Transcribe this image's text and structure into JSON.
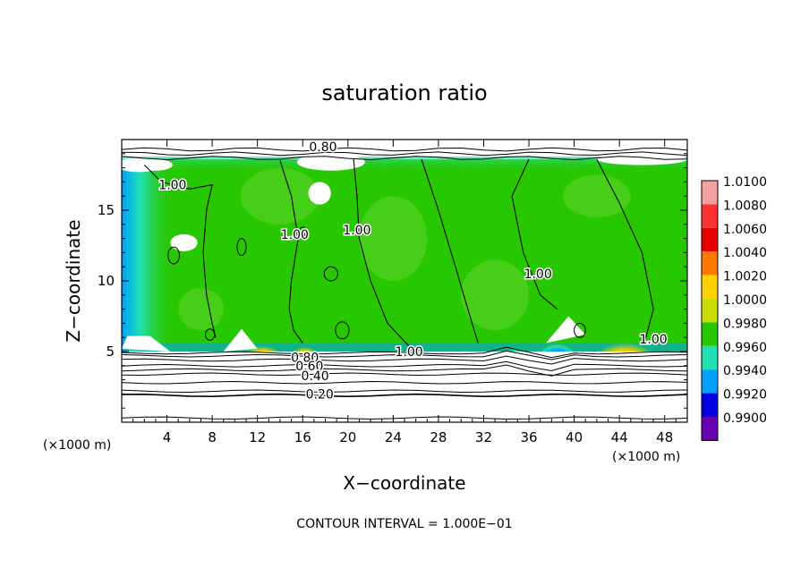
{
  "chart_data": {
    "type": "heatmap",
    "title": "saturation ratio",
    "xlabel": "X−coordinate",
    "ylabel": "Z−coordinate",
    "x_unit_label": "(×1000 m)",
    "xlim": [
      0,
      50
    ],
    "ylim": [
      0,
      20
    ],
    "x_ticks": [
      4,
      8,
      12,
      16,
      20,
      24,
      28,
      32,
      36,
      40,
      44,
      48
    ],
    "y_ticks": [
      5,
      10,
      15
    ],
    "footer": "CONTOUR INTERVAL = 1.000E−01",
    "colorbar": {
      "levels": [
        "1.0100",
        "1.0080",
        "1.0060",
        "1.0040",
        "1.0020",
        "1.0000",
        "0.9980",
        "0.9960",
        "0.9940",
        "0.9920",
        "0.9900"
      ],
      "colors": [
        "#f5a0a0",
        "#ff3030",
        "#e80000",
        "#ff7800",
        "#ffd200",
        "#c8dc00",
        "#28c800",
        "#20e0b4",
        "#00a0ff",
        "#0000e0",
        "#6a00b4"
      ]
    },
    "contour_labels": [
      {
        "text": "0.80",
        "x": 17.8,
        "y": 19.5
      },
      {
        "text": "1.00",
        "x": 4.5,
        "y": 16.8
      },
      {
        "text": "1.00",
        "x": 15.3,
        "y": 13.3
      },
      {
        "text": "1.00",
        "x": 20.8,
        "y": 13.6
      },
      {
        "text": "1.00",
        "x": 36.8,
        "y": 10.5
      },
      {
        "text": "1.00",
        "x": 25.4,
        "y": 5.0
      },
      {
        "text": "1.00",
        "x": 47.0,
        "y": 5.9
      },
      {
        "text": "0.80",
        "x": 16.2,
        "y": 4.6
      },
      {
        "text": "0.60",
        "x": 16.6,
        "y": 4.0
      },
      {
        "text": "0.40",
        "x": 17.1,
        "y": 3.3
      },
      {
        "text": "0.20",
        "x": 17.5,
        "y": 2.0
      }
    ]
  }
}
